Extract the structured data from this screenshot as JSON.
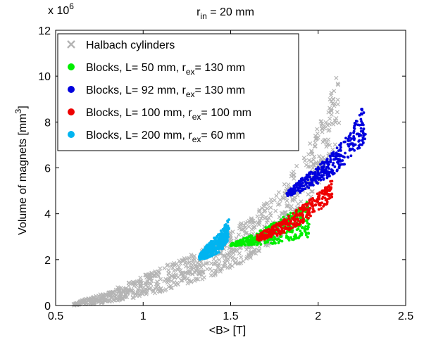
{
  "chart_data": {
    "type": "scatter",
    "title_main": "r",
    "title_sub": "in",
    "title_rest": " = 20 mm",
    "xlabel": "<B> [T]",
    "ylabel_main": "Volume of magnets [mm",
    "ylabel_sup": "3",
    "ylabel_end": "]",
    "exponent_base": "x 10",
    "exponent_power": "6",
    "xlim": [
      0.5,
      2.5
    ],
    "ylim": [
      0,
      12
    ],
    "xticks": [
      0.5,
      1,
      1.5,
      2,
      2.5
    ],
    "xtick_labels": [
      "0.5",
      "1",
      "1.5",
      "2",
      "2.5"
    ],
    "yticks": [
      0,
      2,
      4,
      6,
      8,
      10,
      12
    ],
    "ytick_labels": [
      "0",
      "2",
      "4",
      "6",
      "8",
      "10",
      "12"
    ],
    "grid": false,
    "legend_position": "top-left",
    "series": [
      {
        "name": "Halbach cylinders",
        "marker": "x",
        "color": "#b4b4b4",
        "envelope_lower": [
          [
            0.6,
            0.0
          ],
          [
            0.8,
            0.15
          ],
          [
            1.0,
            0.4
          ],
          [
            1.2,
            0.8
          ],
          [
            1.4,
            1.3
          ],
          [
            1.6,
            2.0
          ],
          [
            1.8,
            3.1
          ],
          [
            1.95,
            4.5
          ],
          [
            2.05,
            6.0
          ],
          [
            2.12,
            7.5
          ]
        ],
        "envelope_upper": [
          [
            0.6,
            0.1
          ],
          [
            0.8,
            0.6
          ],
          [
            1.0,
            1.3
          ],
          [
            1.2,
            2.0
          ],
          [
            1.4,
            2.7
          ],
          [
            1.6,
            3.8
          ],
          [
            1.8,
            5.2
          ],
          [
            1.95,
            7.0
          ],
          [
            2.05,
            8.8
          ],
          [
            2.12,
            10.4
          ]
        ]
      },
      {
        "name_prefix": "Blocks, L=   50 mm, r",
        "name_sub": "ex",
        "name_suffix": "= 130 mm",
        "marker": "o",
        "color": "#00ee00",
        "envelope_lower": [
          [
            1.5,
            2.6
          ],
          [
            1.6,
            2.6
          ],
          [
            1.7,
            2.65
          ],
          [
            1.8,
            2.75
          ],
          [
            1.9,
            2.9
          ],
          [
            1.95,
            3.0
          ]
        ],
        "envelope_upper": [
          [
            1.5,
            2.7
          ],
          [
            1.6,
            3.0
          ],
          [
            1.7,
            3.4
          ],
          [
            1.8,
            3.85
          ],
          [
            1.9,
            4.3
          ],
          [
            1.95,
            4.6
          ]
        ]
      },
      {
        "name_prefix": "Blocks, L=   92 mm, r",
        "name_sub": "ex",
        "name_suffix": "= 130 mm",
        "marker": "o",
        "color": "#0000dd",
        "envelope_lower": [
          [
            1.82,
            4.75
          ],
          [
            1.9,
            4.9
          ],
          [
            2.0,
            5.3
          ],
          [
            2.1,
            5.8
          ],
          [
            2.2,
            6.5
          ],
          [
            2.27,
            7.2
          ]
        ],
        "envelope_upper": [
          [
            1.82,
            4.95
          ],
          [
            1.9,
            5.5
          ],
          [
            2.0,
            6.1
          ],
          [
            2.1,
            6.8
          ],
          [
            2.2,
            7.8
          ],
          [
            2.27,
            9.0
          ]
        ]
      },
      {
        "name_prefix": "Blocks, L= 100 mm, r",
        "name_sub": "ex",
        "name_suffix": "= 100 mm",
        "marker": "o",
        "color": "#ee0000",
        "envelope_lower": [
          [
            1.65,
            2.8
          ],
          [
            1.75,
            3.0
          ],
          [
            1.85,
            3.3
          ],
          [
            1.95,
            3.8
          ],
          [
            2.05,
            4.4
          ],
          [
            2.08,
            4.7
          ]
        ],
        "envelope_upper": [
          [
            1.65,
            3.1
          ],
          [
            1.75,
            3.5
          ],
          [
            1.85,
            4.0
          ],
          [
            1.95,
            4.6
          ],
          [
            2.05,
            5.2
          ],
          [
            2.08,
            5.6
          ]
        ]
      },
      {
        "name_prefix": "Blocks, L= 200 mm, r",
        "name_sub": "ex",
        "name_suffix": "=   60 mm",
        "marker": "o",
        "color": "#00b4f0",
        "envelope_lower": [
          [
            1.32,
            2.0
          ],
          [
            1.36,
            2.05
          ],
          [
            1.4,
            2.15
          ],
          [
            1.45,
            2.4
          ],
          [
            1.49,
            2.9
          ]
        ],
        "envelope_upper": [
          [
            1.32,
            2.2
          ],
          [
            1.36,
            2.6
          ],
          [
            1.4,
            2.9
          ],
          [
            1.45,
            3.3
          ],
          [
            1.49,
            3.8
          ]
        ]
      }
    ]
  }
}
